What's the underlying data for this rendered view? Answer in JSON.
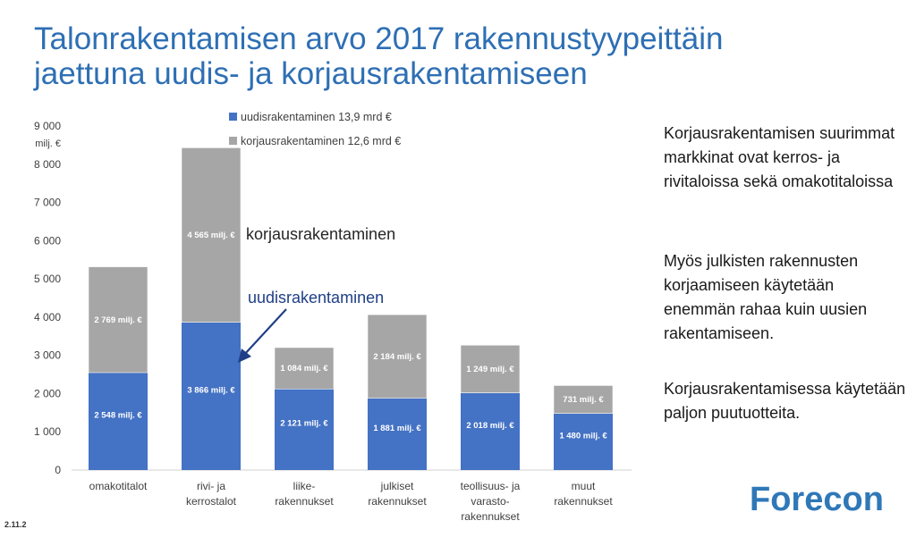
{
  "slide": {
    "title_line1": "Talonrakentamisen arvo 2017 rakennustyypeittäin",
    "title_line2": "jaettuna uudis- ja korjausrakentamiseen",
    "side_text": [
      "Korjausrakentamisen suurimmat markkinat ovat kerros- ja rivitaloissa sekä omakotitaloissa",
      "Myös julkisten rakennusten korjaamiseen käytetään enemmän rahaa kuin uusien rakentamiseen.",
      "Korjausrakentamisessa käytetään paljon puutuotteita."
    ],
    "logo_text": "Forecon",
    "date_text": "2.11.2"
  },
  "colors": {
    "title": "#2e6fb4",
    "new_construction": "#4472c4",
    "renovation": "#a6a6a6",
    "annotation": "#1f3f86",
    "logo": "#2f78b8"
  },
  "chart_data": {
    "type": "bar",
    "stacked": true,
    "ylabel": "milj. €",
    "ylim": [
      0,
      9000
    ],
    "yticks": [
      0,
      1000,
      2000,
      3000,
      4000,
      5000,
      6000,
      7000,
      8000,
      9000
    ],
    "ytick_labels": [
      "0",
      "1 000",
      "2 000",
      "3 000",
      "4 000",
      "5 000",
      "6 000",
      "7 000",
      "8 000",
      "9 000"
    ],
    "categories": [
      [
        "omakotitalot"
      ],
      [
        "rivi- ja",
        "kerrostalot"
      ],
      [
        "liike-",
        "rakennukset"
      ],
      [
        "julkiset",
        "rakennukset"
      ],
      [
        "teollisuus- ja",
        "varasto-",
        "rakennukset"
      ],
      [
        "muut",
        "rakennukset"
      ]
    ],
    "series": [
      {
        "name": "uudisrakentaminen",
        "legend": "uudisrakentaminen  13,9 mrd €",
        "color": "#4472c4",
        "values": [
          2548,
          3866,
          2121,
          1881,
          2018,
          1480
        ],
        "labels": [
          "2 548 milj. €",
          "3 866 milj. €",
          "2 121 milj. €",
          "1 881 milj. €",
          "2 018 milj. €",
          "1 480 milj. €"
        ]
      },
      {
        "name": "korjausrakentaminen",
        "legend": "korjausrakentaminen  12,6 mrd €",
        "color": "#a6a6a6",
        "values": [
          2769,
          4565,
          1084,
          2184,
          1249,
          731
        ],
        "labels": [
          "2 769 milj. €",
          "4 565 milj. €",
          "1 084 milj. €",
          "2 184 milj. €",
          "1 249 milj. €",
          "731 milj. €"
        ]
      }
    ],
    "annotations": [
      "korjausrakentaminen",
      "uudisrakentaminen"
    ],
    "grid": false,
    "legend_position": "top-center"
  }
}
